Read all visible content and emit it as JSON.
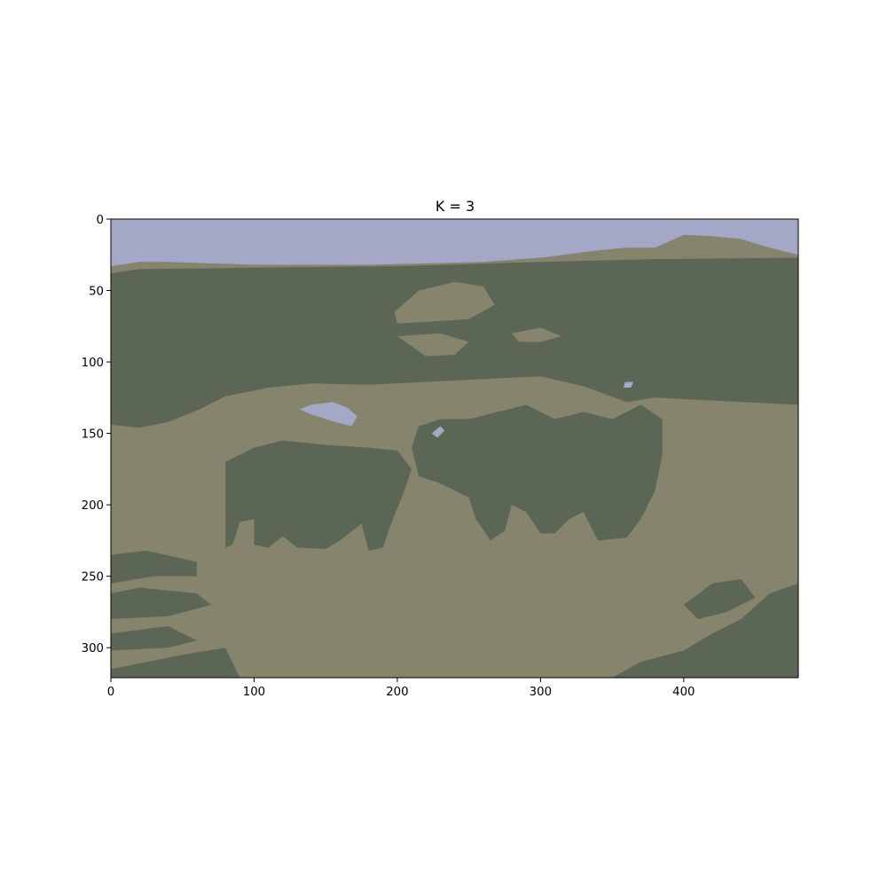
{
  "chart_data": {
    "type": "heatmap",
    "title": "K = 3",
    "xlabel": "",
    "ylabel": "",
    "xlim": [
      0,
      480
    ],
    "ylim": [
      321,
      0
    ],
    "xticks": [
      0,
      100,
      200,
      300,
      400
    ],
    "yticks": [
      0,
      50,
      100,
      150,
      200,
      250,
      300
    ],
    "xtick_labels": [
      "0",
      "100",
      "200",
      "300",
      "400"
    ],
    "ytick_labels": [
      "0",
      "50",
      "100",
      "150",
      "200",
      "250",
      "300"
    ],
    "grid": false,
    "legend": false,
    "cluster_colors": {
      "sky": "#a3a8c7",
      "dark_vegetation": "#5c6655",
      "ground": "#86846c"
    },
    "regions": [
      {
        "cluster": "ground",
        "points": [
          [
            0,
            0
          ],
          [
            480,
            0
          ],
          [
            480,
            321
          ],
          [
            0,
            321
          ]
        ]
      },
      {
        "cluster": "sky",
        "points": [
          [
            0,
            0
          ],
          [
            480,
            0
          ],
          [
            480,
            25
          ],
          [
            460,
            20
          ],
          [
            440,
            14
          ],
          [
            420,
            12
          ],
          [
            400,
            11
          ],
          [
            380,
            20
          ],
          [
            360,
            20
          ],
          [
            340,
            22
          ],
          [
            300,
            27
          ],
          [
            260,
            30
          ],
          [
            220,
            31
          ],
          [
            180,
            32
          ],
          [
            100,
            32
          ],
          [
            40,
            30
          ],
          [
            20,
            30
          ],
          [
            0,
            33
          ]
        ]
      },
      {
        "cluster": "dark_vegetation",
        "points": [
          [
            0,
            38
          ],
          [
            20,
            35
          ],
          [
            100,
            34
          ],
          [
            200,
            33
          ],
          [
            300,
            30
          ],
          [
            380,
            28
          ],
          [
            480,
            27
          ],
          [
            480,
            130
          ],
          [
            420,
            127
          ],
          [
            380,
            125
          ],
          [
            360,
            128
          ],
          [
            330,
            117
          ],
          [
            300,
            110
          ],
          [
            260,
            112
          ],
          [
            220,
            114
          ],
          [
            180,
            116
          ],
          [
            140,
            115
          ],
          [
            110,
            118
          ],
          [
            80,
            124
          ],
          [
            60,
            134
          ],
          [
            40,
            142
          ],
          [
            20,
            146
          ],
          [
            0,
            144
          ]
        ]
      },
      {
        "cluster": "ground",
        "points": [
          [
            198,
            65
          ],
          [
            215,
            50
          ],
          [
            240,
            44
          ],
          [
            260,
            47
          ],
          [
            268,
            60
          ],
          [
            250,
            70
          ],
          [
            220,
            72
          ],
          [
            200,
            73
          ]
        ]
      },
      {
        "cluster": "ground",
        "points": [
          [
            280,
            80
          ],
          [
            300,
            76
          ],
          [
            315,
            82
          ],
          [
            300,
            86
          ],
          [
            285,
            86
          ]
        ]
      },
      {
        "cluster": "ground",
        "points": [
          [
            200,
            82
          ],
          [
            230,
            80
          ],
          [
            250,
            86
          ],
          [
            240,
            95
          ],
          [
            220,
            96
          ]
        ]
      },
      {
        "cluster": "dark_vegetation",
        "points": [
          [
            80,
            170
          ],
          [
            100,
            160
          ],
          [
            120,
            155
          ],
          [
            150,
            158
          ],
          [
            180,
            160
          ],
          [
            200,
            162
          ],
          [
            210,
            175
          ],
          [
            205,
            190
          ],
          [
            195,
            215
          ],
          [
            190,
            230
          ],
          [
            180,
            232
          ],
          [
            175,
            213
          ],
          [
            160,
            225
          ],
          [
            150,
            231
          ],
          [
            130,
            230
          ],
          [
            120,
            222
          ],
          [
            110,
            230
          ],
          [
            100,
            228
          ],
          [
            100,
            210
          ],
          [
            90,
            212
          ],
          [
            85,
            228
          ],
          [
            80,
            230
          ],
          [
            80,
            210
          ],
          [
            80,
            190
          ]
        ]
      },
      {
        "cluster": "dark_vegetation",
        "points": [
          [
            215,
            145
          ],
          [
            230,
            140
          ],
          [
            250,
            140
          ],
          [
            270,
            135
          ],
          [
            290,
            130
          ],
          [
            310,
            140
          ],
          [
            330,
            135
          ],
          [
            350,
            140
          ],
          [
            370,
            130
          ],
          [
            385,
            140
          ],
          [
            385,
            165
          ],
          [
            380,
            190
          ],
          [
            370,
            210
          ],
          [
            360,
            223
          ],
          [
            340,
            225
          ],
          [
            330,
            205
          ],
          [
            320,
            210
          ],
          [
            310,
            220
          ],
          [
            300,
            220
          ],
          [
            290,
            205
          ],
          [
            280,
            200
          ],
          [
            275,
            218
          ],
          [
            265,
            225
          ],
          [
            255,
            210
          ],
          [
            250,
            195
          ],
          [
            230,
            185
          ],
          [
            215,
            180
          ],
          [
            210,
            160
          ]
        ]
      },
      {
        "cluster": "dark_vegetation",
        "points": [
          [
            0,
            235
          ],
          [
            25,
            232
          ],
          [
            60,
            240
          ],
          [
            60,
            250
          ],
          [
            30,
            250
          ],
          [
            0,
            255
          ]
        ]
      },
      {
        "cluster": "dark_vegetation",
        "points": [
          [
            0,
            262
          ],
          [
            20,
            258
          ],
          [
            60,
            262
          ],
          [
            70,
            270
          ],
          [
            40,
            278
          ],
          [
            0,
            280
          ]
        ]
      },
      {
        "cluster": "dark_vegetation",
        "points": [
          [
            0,
            290
          ],
          [
            40,
            285
          ],
          [
            60,
            295
          ],
          [
            40,
            300
          ],
          [
            0,
            302
          ]
        ]
      },
      {
        "cluster": "dark_vegetation",
        "points": [
          [
            0,
            315
          ],
          [
            50,
            305
          ],
          [
            80,
            300
          ],
          [
            90,
            321
          ],
          [
            0,
            321
          ]
        ]
      },
      {
        "cluster": "dark_vegetation",
        "points": [
          [
            350,
            321
          ],
          [
            370,
            310
          ],
          [
            400,
            302
          ],
          [
            420,
            290
          ],
          [
            440,
            280
          ],
          [
            460,
            262
          ],
          [
            480,
            255
          ],
          [
            480,
            321
          ]
        ]
      },
      {
        "cluster": "dark_vegetation",
        "points": [
          [
            400,
            270
          ],
          [
            420,
            255
          ],
          [
            440,
            252
          ],
          [
            450,
            265
          ],
          [
            430,
            275
          ],
          [
            410,
            280
          ]
        ]
      },
      {
        "cluster": "sky",
        "points": [
          [
            132,
            133
          ],
          [
            140,
            130
          ],
          [
            155,
            128
          ],
          [
            165,
            132
          ],
          [
            172,
            138
          ],
          [
            168,
            145
          ],
          [
            160,
            143
          ],
          [
            150,
            140
          ],
          [
            138,
            136
          ]
        ]
      },
      {
        "cluster": "sky",
        "points": [
          [
            224,
            150
          ],
          [
            230,
            145
          ],
          [
            233,
            148
          ],
          [
            228,
            153
          ]
        ]
      },
      {
        "cluster": "sky",
        "points": [
          [
            359,
            114
          ],
          [
            365,
            114
          ],
          [
            363,
            118
          ],
          [
            358,
            118
          ]
        ]
      }
    ]
  }
}
